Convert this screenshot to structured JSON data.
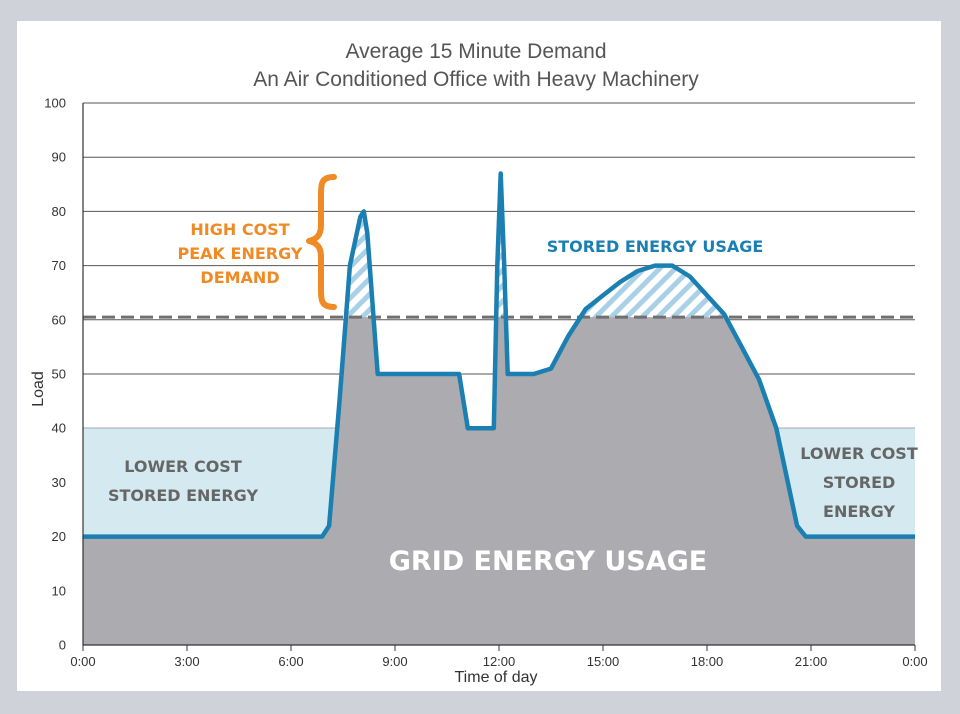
{
  "chart_data": {
    "type": "area",
    "title": [
      "Average 15 Minute Demand",
      "An Air Conditioned Office with Heavy Machinery"
    ],
    "xlabel": "Time of day",
    "ylabel": "Load",
    "ylim": [
      0,
      100
    ],
    "xlim": [
      0,
      24
    ],
    "yticks": [
      0,
      10,
      20,
      30,
      40,
      50,
      60,
      70,
      80,
      90,
      100
    ],
    "xticks": [
      {
        "value": 0,
        "label": "0:00"
      },
      {
        "value": 3,
        "label": "3:00"
      },
      {
        "value": 6,
        "label": "6:00"
      },
      {
        "value": 9,
        "label": "9:00"
      },
      {
        "value": 12,
        "label": "12:00"
      },
      {
        "value": 15,
        "label": "15:00"
      },
      {
        "value": 18,
        "label": "18:00"
      },
      {
        "value": 21,
        "label": "21:00"
      },
      {
        "value": 24,
        "label": "0:00"
      }
    ],
    "grid": true,
    "peak_threshold": 60.5,
    "stored_charge_level": 40,
    "demand_series": {
      "name": "Average 15 minute demand",
      "x": [
        0,
        1,
        2,
        3,
        4,
        5,
        6,
        6.9,
        7.1,
        7.4,
        7.7,
        8.0,
        8.1,
        8.2,
        8.5,
        9,
        10,
        10.6,
        10.85,
        11.1,
        11.5,
        11.85,
        11.95,
        12.05,
        12.15,
        12.25,
        12.5,
        13,
        13.5,
        14,
        14.5,
        15,
        15.5,
        16,
        16.5,
        17,
        17.5,
        18,
        18.5,
        19,
        19.5,
        20,
        20.3,
        20.6,
        20.85,
        21,
        21.5,
        22,
        23,
        24
      ],
      "y": [
        20,
        20,
        20,
        20,
        20,
        20,
        20,
        20,
        22,
        45,
        70,
        79,
        80,
        76,
        50,
        50,
        50,
        50,
        50,
        40,
        40,
        40,
        70,
        87,
        70,
        50,
        50,
        50,
        51,
        57,
        62,
        64.5,
        67,
        69,
        70,
        70,
        68,
        64.5,
        61,
        55,
        49,
        40,
        31,
        22,
        20,
        20,
        20,
        20,
        20,
        20
      ]
    },
    "annotations": {
      "high_cost": [
        "HIGH COST",
        "PEAK ENERGY",
        "DEMAND"
      ],
      "stored_usage": "STORED ENERGY USAGE",
      "lower_cost_left": [
        "LOWER COST",
        "STORED ENERGY"
      ],
      "lower_cost_right": [
        "LOWER COST",
        "STORED",
        "ENERGY"
      ],
      "grid_usage": "GRID ENERGY USAGE"
    },
    "colors": {
      "grid_fill": "#acabaf",
      "stored_fill": "#d5eaf0",
      "line": "#1b7fb1",
      "hatch": "#a8d0e6",
      "high_cost": "#f08a24",
      "lower_cost_text": "#666666",
      "grid_text": "#ffffff",
      "threshold": "#707070"
    }
  }
}
